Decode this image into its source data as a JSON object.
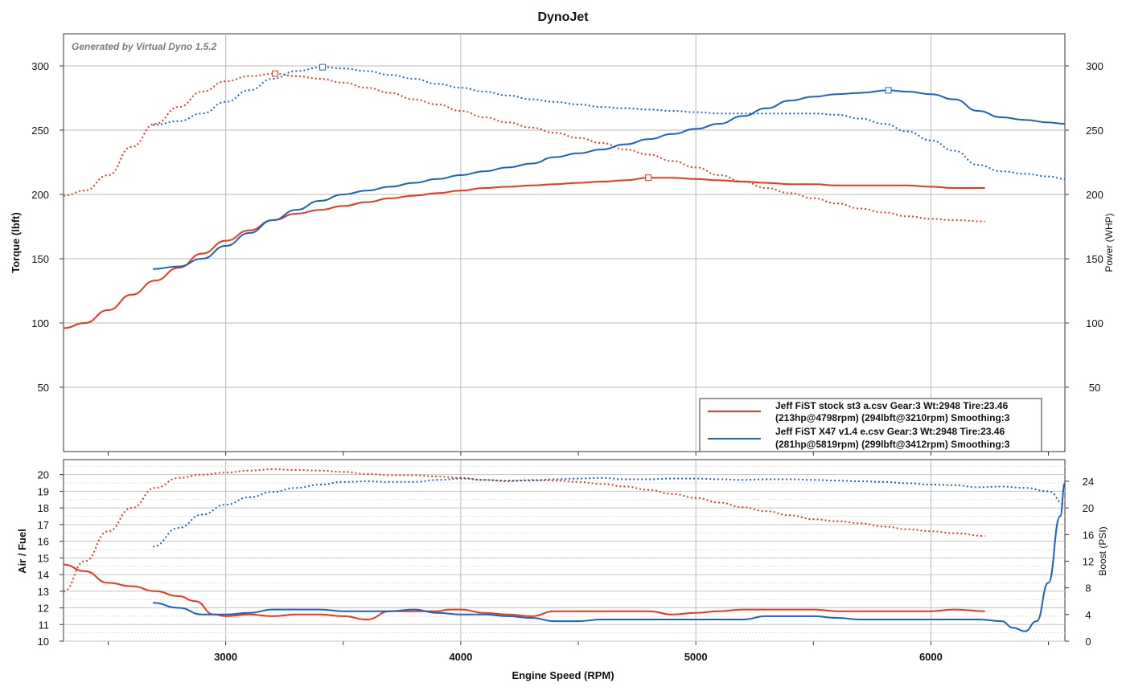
{
  "chart_data": [
    {
      "type": "line",
      "title": "DynoJet",
      "watermark": "Generated by Virtual Dyno 1.5.2",
      "xlabel": "",
      "ylabel": "Torque (lbft)",
      "ylabel_right": "Power (WHP)",
      "xlim": [
        2310,
        6570
      ],
      "ylim": [
        0,
        325
      ],
      "ylim_right": [
        0,
        325
      ],
      "x_ticks": [],
      "y_ticks": [
        50,
        100,
        150,
        200,
        250,
        300
      ],
      "y_ticks_right": [
        50,
        100,
        150,
        200,
        250,
        300
      ],
      "grid": true,
      "legend_position": "bottom-right",
      "legend": [
        {
          "line1": "Jeff FiST stock st3 a.csv Gear:3 Wt:2948 Tire:23.46",
          "line2": "(213hp@4798rpm) (294lbft@3210rpm) Smoothing:3",
          "color": "#e8381c"
        },
        {
          "line1": "Jeff FiST X47 v1.4 e.csv Gear:3 Wt:2948 Tire:23.46",
          "line2": "(281hp@5819rpm) (299lbft@3412rpm) Smoothing:3",
          "color": "#1a62c4"
        }
      ],
      "series": [
        {
          "key": "stock_torque",
          "color": "#e8381c",
          "style": "dotted",
          "axis": "left",
          "x": [
            2310,
            2400,
            2500,
            2600,
            2700,
            2800,
            2900,
            3000,
            3100,
            3210,
            3300,
            3400,
            3500,
            3600,
            3700,
            3800,
            3900,
            4000,
            4100,
            4200,
            4300,
            4400,
            4500,
            4600,
            4700,
            4800,
            4900,
            5000,
            5100,
            5200,
            5300,
            5400,
            5500,
            5600,
            5700,
            5800,
            5900,
            6000,
            6100,
            6230
          ],
          "y": [
            199,
            203,
            215,
            237,
            255,
            268,
            280,
            288,
            292,
            294,
            292,
            290,
            287,
            283,
            279,
            274,
            270,
            265,
            260,
            256,
            252,
            248,
            244,
            240,
            235,
            231,
            226,
            221,
            215,
            210,
            205,
            201,
            197,
            193,
            189,
            186,
            183,
            181,
            180,
            179
          ]
        },
        {
          "key": "stock_power",
          "color": "#e8381c",
          "style": "solid",
          "axis": "left",
          "x": [
            2310,
            2400,
            2500,
            2600,
            2700,
            2800,
            2900,
            3000,
            3100,
            3200,
            3300,
            3400,
            3500,
            3600,
            3700,
            3800,
            3900,
            4000,
            4100,
            4200,
            4300,
            4400,
            4500,
            4600,
            4700,
            4798,
            4900,
            5000,
            5100,
            5200,
            5300,
            5400,
            5500,
            5600,
            5700,
            5800,
            5900,
            6000,
            6100,
            6230
          ],
          "y": [
            96,
            100,
            110,
            122,
            133,
            143,
            154,
            164,
            172,
            180,
            185,
            188,
            191,
            194,
            197,
            199,
            201,
            203,
            205,
            206,
            207,
            208,
            209,
            210,
            211,
            213,
            213,
            212,
            211,
            210,
            209,
            208,
            208,
            207,
            207,
            207,
            207,
            206,
            205,
            205
          ]
        },
        {
          "key": "x47_torque",
          "color": "#1a62c4",
          "style": "dotted",
          "axis": "left",
          "x": [
            2690,
            2800,
            2900,
            3000,
            3100,
            3200,
            3300,
            3412,
            3500,
            3600,
            3700,
            3800,
            3900,
            4000,
            4100,
            4200,
            4300,
            4400,
            4500,
            4600,
            4700,
            4800,
            4900,
            5000,
            5100,
            5200,
            5300,
            5400,
            5500,
            5600,
            5700,
            5800,
            5900,
            6000,
            6100,
            6200,
            6300,
            6400,
            6500,
            6570
          ],
          "y": [
            254,
            257,
            263,
            272,
            281,
            290,
            296,
            299,
            298,
            296,
            293,
            290,
            286,
            283,
            280,
            277,
            274,
            272,
            270,
            268,
            267,
            266,
            265,
            264,
            263,
            263,
            263,
            263,
            263,
            262,
            259,
            255,
            249,
            242,
            234,
            223,
            218,
            216,
            214,
            212
          ]
        },
        {
          "key": "x47_power",
          "color": "#1a62c4",
          "style": "solid",
          "axis": "left",
          "x": [
            2690,
            2800,
            2900,
            3000,
            3100,
            3200,
            3300,
            3400,
            3500,
            3600,
            3700,
            3800,
            3900,
            4000,
            4100,
            4200,
            4300,
            4400,
            4500,
            4600,
            4700,
            4800,
            4900,
            5000,
            5100,
            5200,
            5300,
            5400,
            5500,
            5600,
            5700,
            5819,
            5900,
            6000,
            6100,
            6200,
            6300,
            6400,
            6500,
            6570
          ],
          "y": [
            142,
            144,
            150,
            160,
            170,
            180,
            188,
            195,
            200,
            203,
            206,
            209,
            212,
            215,
            218,
            221,
            224,
            229,
            232,
            235,
            239,
            243,
            247,
            251,
            255,
            261,
            267,
            273,
            276,
            278,
            279,
            281,
            280,
            278,
            274,
            265,
            260,
            258,
            256,
            255
          ]
        }
      ]
    },
    {
      "type": "line",
      "title": "",
      "xlabel": "Engine Speed (RPM)",
      "ylabel": "Air / Fuel",
      "ylabel_right": "Boost (PSI)",
      "xlim": [
        2310,
        6570
      ],
      "ylim": [
        10,
        20.9
      ],
      "ylim_right": [
        0,
        27.25
      ],
      "x_ticks": [
        3000,
        4000,
        5000,
        6000
      ],
      "y_ticks": [
        10,
        11,
        12,
        13,
        14,
        15,
        16,
        17,
        18,
        19,
        20
      ],
      "y_ticks_right": [
        0,
        4,
        8,
        12,
        16,
        20,
        24
      ],
      "grid": true,
      "series": [
        {
          "key": "stock_afr",
          "color": "#e8381c",
          "style": "solid",
          "axis": "left",
          "x": [
            2310,
            2400,
            2500,
            2600,
            2700,
            2800,
            2870,
            2950,
            3000,
            3100,
            3200,
            3300,
            3400,
            3500,
            3600,
            3700,
            3800,
            3900,
            3950,
            4000,
            4100,
            4200,
            4300,
            4400,
            4500,
            4600,
            4700,
            4800,
            4900,
            5000,
            5100,
            5200,
            5300,
            5400,
            5500,
            5600,
            5700,
            5800,
            5900,
            6000,
            6100,
            6230
          ],
          "y": [
            14.6,
            14.2,
            13.5,
            13.3,
            13.0,
            12.7,
            12.4,
            11.6,
            11.5,
            11.6,
            11.5,
            11.6,
            11.6,
            11.5,
            11.3,
            11.8,
            11.8,
            11.8,
            11.9,
            11.9,
            11.7,
            11.6,
            11.5,
            11.8,
            11.8,
            11.8,
            11.8,
            11.8,
            11.6,
            11.7,
            11.8,
            11.9,
            11.9,
            11.9,
            11.9,
            11.8,
            11.8,
            11.8,
            11.8,
            11.8,
            11.9,
            11.8
          ]
        },
        {
          "key": "stock_boost",
          "color": "#e8381c",
          "style": "dotted",
          "axis": "right",
          "x": [
            2310,
            2400,
            2500,
            2600,
            2700,
            2800,
            2900,
            3000,
            3100,
            3200,
            3300,
            3400,
            3500,
            3600,
            3700,
            3800,
            3900,
            4000,
            4100,
            4200,
            4300,
            4400,
            4500,
            4600,
            4700,
            4800,
            4900,
            5000,
            5100,
            5200,
            5300,
            5400,
            5500,
            5600,
            5700,
            5800,
            5900,
            6000,
            6100,
            6230
          ],
          "y": [
            7.5,
            12,
            16.5,
            20,
            23,
            24.5,
            25,
            25.3,
            25.6,
            25.8,
            25.7,
            25.6,
            25.4,
            25.1,
            24.9,
            24.9,
            24.7,
            24.5,
            24.2,
            24.0,
            24.2,
            24.1,
            23.9,
            23.6,
            23.2,
            22.7,
            22.1,
            21.5,
            20.8,
            20.1,
            19.5,
            18.9,
            18.3,
            18.0,
            17.7,
            17.2,
            16.8,
            16.5,
            16.2,
            15.8
          ]
        },
        {
          "key": "x47_afr",
          "color": "#1a62c4",
          "style": "solid",
          "axis": "left",
          "x": [
            2690,
            2800,
            2900,
            3000,
            3100,
            3200,
            3300,
            3400,
            3500,
            3600,
            3700,
            3800,
            3900,
            4000,
            4100,
            4200,
            4300,
            4400,
            4500,
            4600,
            4700,
            4800,
            4900,
            5000,
            5100,
            5200,
            5300,
            5400,
            5500,
            5600,
            5700,
            5800,
            5900,
            6000,
            6100,
            6200,
            6300,
            6350,
            6400,
            6450,
            6500,
            6550,
            6570
          ],
          "y": [
            12.3,
            12.0,
            11.6,
            11.6,
            11.7,
            11.9,
            11.9,
            11.9,
            11.8,
            11.8,
            11.8,
            11.9,
            11.7,
            11.6,
            11.6,
            11.5,
            11.4,
            11.2,
            11.2,
            11.3,
            11.3,
            11.3,
            11.3,
            11.3,
            11.3,
            11.3,
            11.5,
            11.5,
            11.5,
            11.4,
            11.3,
            11.3,
            11.3,
            11.3,
            11.3,
            11.3,
            11.2,
            10.8,
            10.6,
            11.2,
            13.5,
            17.5,
            19.5
          ]
        },
        {
          "key": "x47_boost",
          "color": "#1a62c4",
          "style": "dotted",
          "axis": "right",
          "x": [
            2690,
            2800,
            2900,
            3000,
            3100,
            3200,
            3300,
            3400,
            3500,
            3600,
            3700,
            3800,
            3900,
            4000,
            4100,
            4200,
            4300,
            4400,
            4500,
            4600,
            4700,
            4800,
            4900,
            5000,
            5100,
            5200,
            5300,
            5400,
            5500,
            5600,
            5700,
            5800,
            5900,
            6000,
            6100,
            6200,
            6300,
            6400,
            6500,
            6570
          ],
          "y": [
            14.2,
            17.0,
            19.0,
            20.5,
            21.6,
            22.4,
            23.0,
            23.5,
            23.9,
            24.0,
            23.9,
            23.9,
            24.2,
            24.4,
            24.2,
            24.1,
            24.1,
            24.3,
            24.4,
            24.5,
            24.3,
            24.3,
            24.4,
            24.4,
            24.3,
            24.2,
            24.3,
            24.3,
            24.2,
            24.1,
            24.0,
            23.9,
            23.7,
            23.5,
            23.4,
            23.1,
            23.2,
            23.0,
            22.5,
            20.5
          ]
        }
      ]
    }
  ]
}
